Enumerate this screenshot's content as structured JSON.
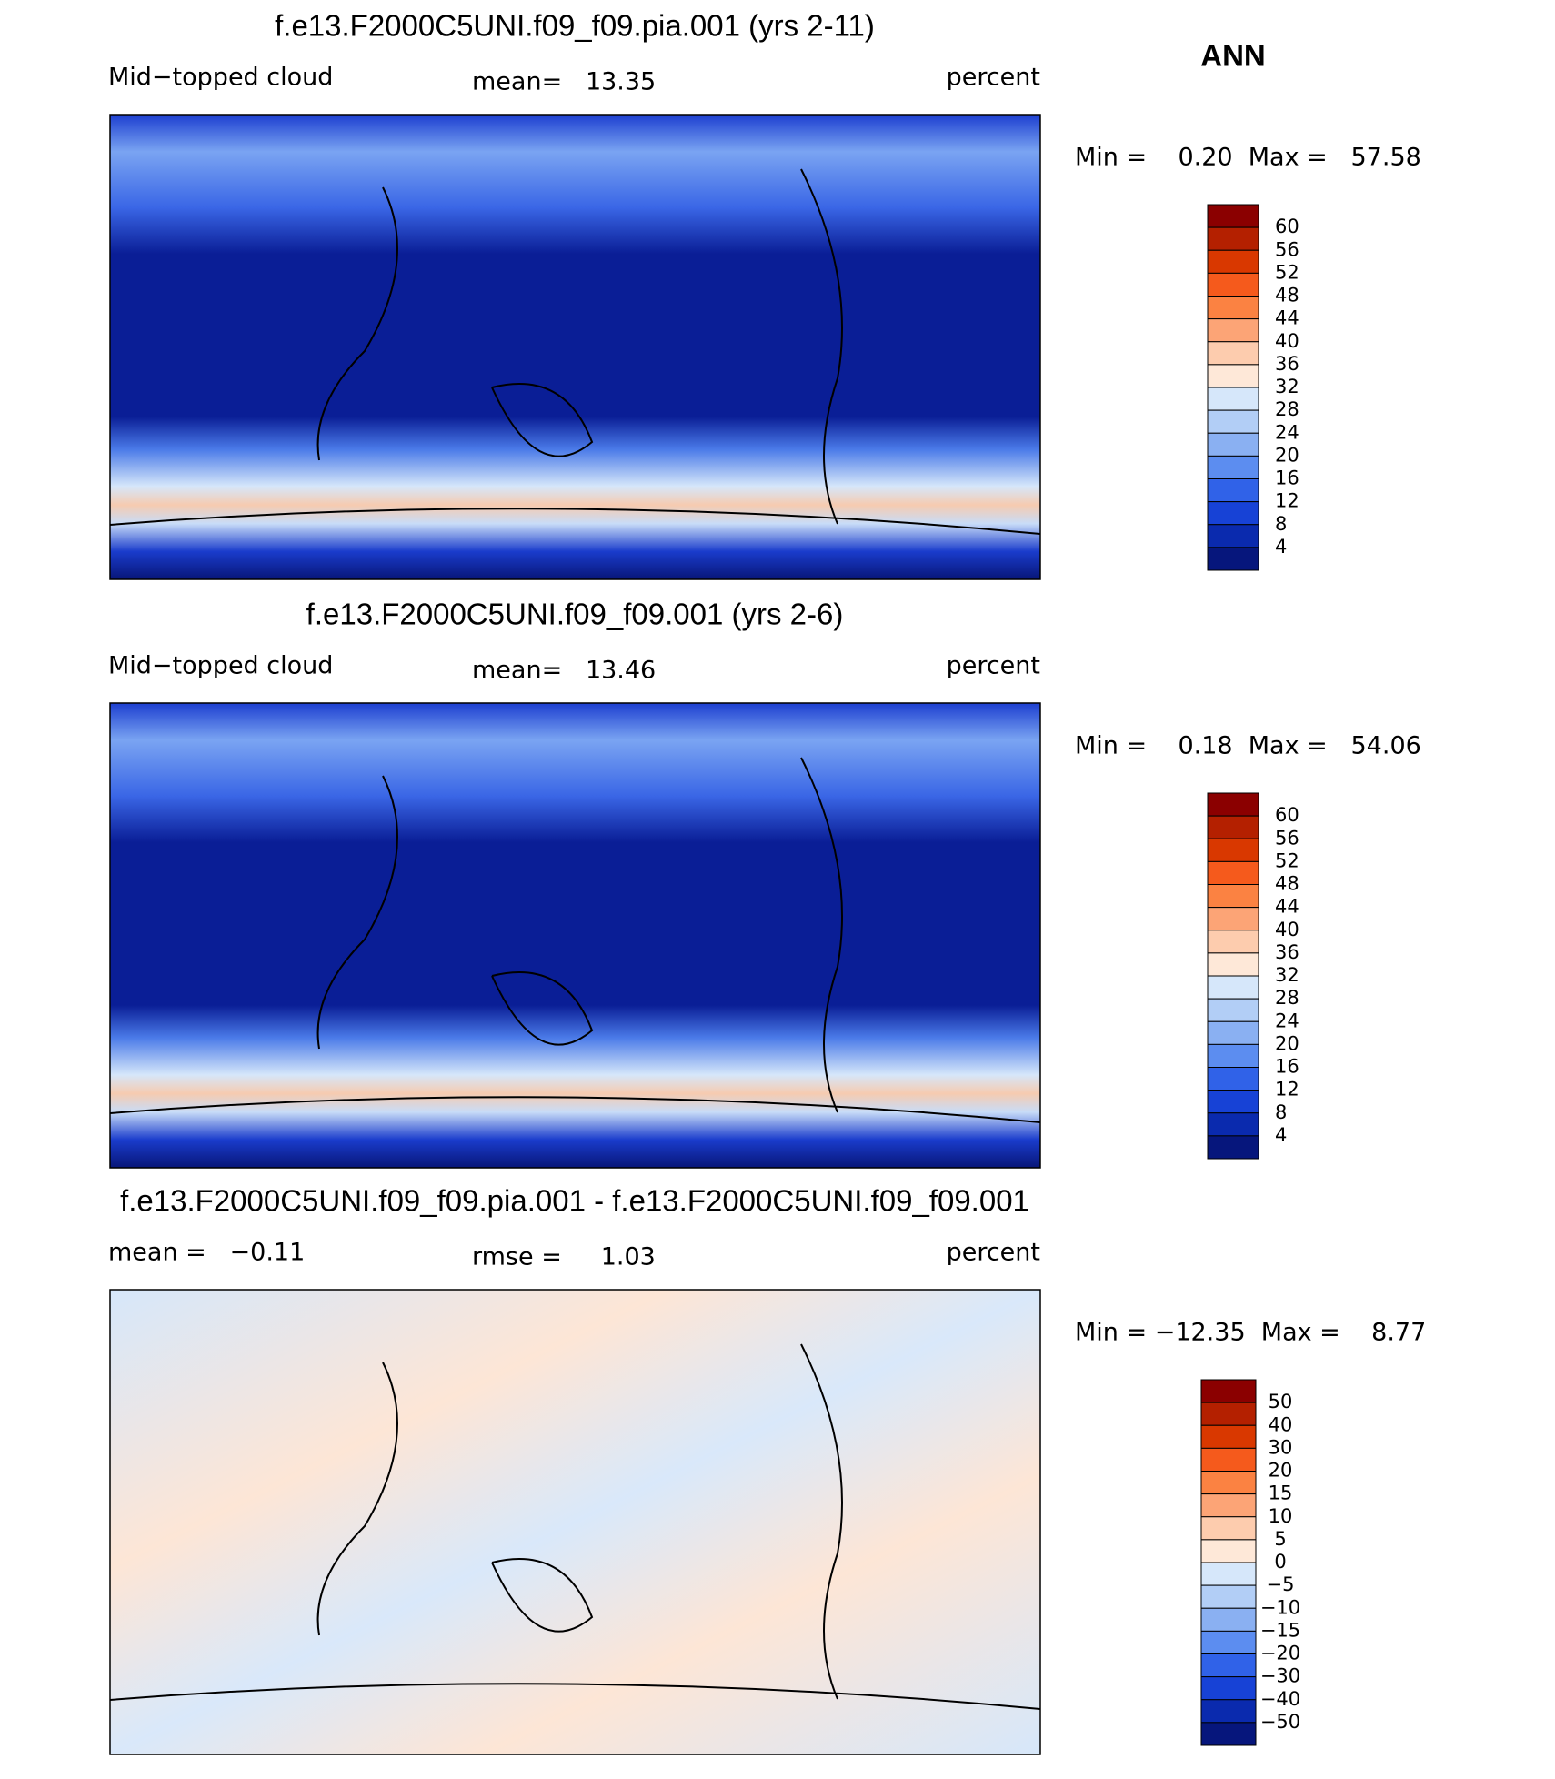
{
  "season": "ANN",
  "panels": [
    {
      "title": "f.e13.F2000C5UNI.f09_f09.pia.001 (yrs 2-11)",
      "left": "Mid−topped cloud",
      "center": "mean=   13.35",
      "right": "percent",
      "stats": "Min =    0.20  Max =   57.58",
      "colorbar": {
        "labels": [
          "60",
          "56",
          "52",
          "48",
          "44",
          "40",
          "36",
          "32",
          "28",
          "24",
          "20",
          "16",
          "12",
          "8",
          "4"
        ]
      }
    },
    {
      "title": "f.e13.F2000C5UNI.f09_f09.001 (yrs 2-6)",
      "left": "Mid−topped cloud",
      "center": "mean=   13.46",
      "right": "percent",
      "stats": "Min =    0.18  Max =   54.06",
      "colorbar": {
        "labels": [
          "60",
          "56",
          "52",
          "48",
          "44",
          "40",
          "36",
          "32",
          "28",
          "24",
          "20",
          "16",
          "12",
          "8",
          "4"
        ]
      }
    },
    {
      "title": "f.e13.F2000C5UNI.f09_f09.pia.001 - f.e13.F2000C5UNI.f09_f09.001",
      "left": "mean =   −0.11",
      "center": "rmse =     1.03",
      "right": "percent",
      "stats": "Min = −12.35  Max =    8.77",
      "colorbar": {
        "labels": [
          "50",
          "40",
          "30",
          "20",
          "15",
          "10",
          "5",
          "0",
          "−5",
          "−10",
          "−15",
          "−20",
          "−30",
          "−40",
          "−50"
        ]
      }
    }
  ],
  "colors": [
    "#8b0000",
    "#b42000",
    "#d93800",
    "#f55a1c",
    "#fb8242",
    "#fca476",
    "#fdccae",
    "#fee8d8",
    "#d6e7fa",
    "#b2cef6",
    "#8ab0f2",
    "#5c8df0",
    "#3062e8",
    "#1742d6",
    "#0a2aae",
    "#06167c"
  ]
}
